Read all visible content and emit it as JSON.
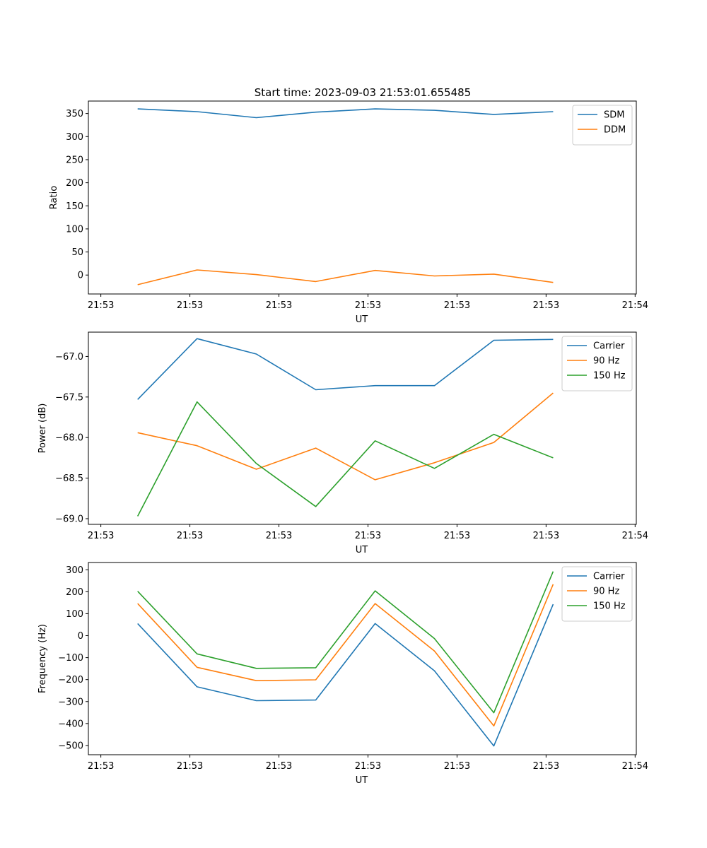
{
  "figure": {
    "title": "Start time: 2023-09-03 21:53:01.655485"
  },
  "chart_data": [
    {
      "type": "line",
      "title": "Start time: 2023-09-03 21:53:01.655485",
      "xlabel": "UT",
      "ylabel": "Ratio",
      "x": [
        1,
        2,
        3,
        4,
        5,
        6,
        7,
        8
      ],
      "xlim": [
        0.17,
        9.4
      ],
      "xticks": [
        0.38,
        1.88,
        3.38,
        4.88,
        6.38,
        7.88,
        9.38
      ],
      "xticklabels": [
        "21:53",
        "21:53",
        "21:53",
        "21:53",
        "21:53",
        "21:53",
        "21:54"
      ],
      "ylim": [
        -41,
        377
      ],
      "yticks": [
        0,
        50,
        100,
        150,
        200,
        250,
        300,
        350
      ],
      "yticklabels": [
        "0",
        "50",
        "100",
        "150",
        "200",
        "250",
        "300",
        "350"
      ],
      "grid": false,
      "legend_loc": "upper right",
      "series": [
        {
          "name": "SDM",
          "color": "#1f77b4",
          "values": [
            360,
            354,
            341,
            353,
            360,
            357,
            348,
            354
          ]
        },
        {
          "name": "DDM",
          "color": "#ff7f0e",
          "values": [
            -21,
            11,
            1,
            -14,
            10,
            -2,
            2,
            -16
          ]
        }
      ]
    },
    {
      "type": "line",
      "xlabel": "UT",
      "ylabel": "Power (dB)",
      "x": [
        1,
        2,
        3,
        4,
        5,
        6,
        7,
        8
      ],
      "xlim": [
        0.17,
        9.4
      ],
      "xticks": [
        0.38,
        1.88,
        3.38,
        4.88,
        6.38,
        7.88,
        9.38
      ],
      "xticklabels": [
        "21:53",
        "21:53",
        "21:53",
        "21:53",
        "21:53",
        "21:53",
        "21:54"
      ],
      "ylim": [
        -69.07,
        -66.7
      ],
      "yticks": [
        -69.0,
        -68.5,
        -68.0,
        -67.5,
        -67.0
      ],
      "yticklabels": [
        "−69.0",
        "−68.5",
        "−68.0",
        "−67.5",
        "−67.0"
      ],
      "grid": false,
      "legend_loc": "upper right",
      "series": [
        {
          "name": "Carrier",
          "color": "#1f77b4",
          "values": [
            -67.53,
            -66.78,
            -66.97,
            -67.41,
            -67.36,
            -67.36,
            -66.8,
            -66.79
          ]
        },
        {
          "name": "90 Hz",
          "color": "#ff7f0e",
          "values": [
            -67.94,
            -68.1,
            -68.39,
            -68.13,
            -68.52,
            -68.31,
            -68.06,
            -67.45
          ]
        },
        {
          "name": "150 Hz",
          "color": "#2ca02c",
          "values": [
            -68.97,
            -67.56,
            -68.32,
            -68.85,
            -68.04,
            -68.38,
            -67.96,
            -68.25
          ]
        }
      ]
    },
    {
      "type": "line",
      "xlabel": "UT",
      "ylabel": "Frequency (Hz)",
      "x": [
        1,
        2,
        3,
        4,
        5,
        6,
        7,
        8
      ],
      "xlim": [
        0.17,
        9.4
      ],
      "xticks": [
        0.38,
        1.88,
        3.38,
        4.88,
        6.38,
        7.88,
        9.38
      ],
      "xticklabels": [
        "21:53",
        "21:53",
        "21:53",
        "21:53",
        "21:53",
        "21:53",
        "21:54"
      ],
      "ylim": [
        -542,
        333
      ],
      "yticks": [
        -500,
        -400,
        -300,
        -200,
        -100,
        0,
        100,
        200,
        300
      ],
      "yticklabels": [
        "−500",
        "−400",
        "−300",
        "−200",
        "−100",
        "0",
        "100",
        "200",
        "300"
      ],
      "grid": false,
      "legend_loc": "upper right",
      "series": [
        {
          "name": "Carrier",
          "color": "#1f77b4",
          "values": [
            55,
            -233,
            -296,
            -293,
            55,
            -160,
            -502,
            143
          ]
        },
        {
          "name": "90 Hz",
          "color": "#ff7f0e",
          "values": [
            146,
            -144,
            -205,
            -201,
            146,
            -70,
            -411,
            234
          ]
        },
        {
          "name": "150 Hz",
          "color": "#2ca02c",
          "values": [
            202,
            -83,
            -149,
            -146,
            204,
            -13,
            -351,
            292
          ]
        }
      ]
    }
  ]
}
